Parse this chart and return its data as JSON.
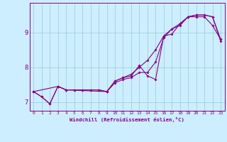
{
  "xlabel": "Windchill (Refroidissement éolien,°C)",
  "bg_color": "#cceeff",
  "line_color": "#880088",
  "grid_color": "#99cccc",
  "xlim": [
    -0.5,
    23.5
  ],
  "ylim": [
    6.75,
    9.85
  ],
  "yticks": [
    7,
    8,
    9
  ],
  "xticks": [
    0,
    1,
    2,
    3,
    4,
    5,
    6,
    7,
    8,
    9,
    10,
    11,
    12,
    13,
    14,
    15,
    16,
    17,
    18,
    19,
    20,
    21,
    22,
    23
  ],
  "line1_x": [
    0,
    1,
    2,
    3,
    4,
    5,
    6,
    7,
    8,
    9,
    10,
    11,
    12,
    13,
    14,
    15,
    16,
    17,
    18,
    19,
    20,
    21,
    22,
    23
  ],
  "line1_y": [
    7.3,
    7.15,
    6.95,
    7.45,
    7.35,
    7.35,
    7.35,
    7.35,
    7.35,
    7.3,
    7.55,
    7.65,
    7.7,
    7.85,
    7.85,
    8.15,
    8.85,
    9.1,
    9.2,
    9.45,
    9.45,
    9.45,
    9.2,
    8.8
  ],
  "line2_x": [
    0,
    3,
    4,
    9,
    10,
    11,
    12,
    13,
    14,
    15,
    16,
    17,
    18,
    19,
    20,
    21,
    22,
    23
  ],
  "line2_y": [
    7.3,
    7.45,
    7.35,
    7.3,
    7.6,
    7.7,
    7.75,
    8.05,
    7.75,
    7.65,
    8.9,
    8.95,
    9.25,
    9.45,
    9.5,
    9.5,
    9.45,
    8.75
  ],
  "line3_x": [
    0,
    1,
    2,
    3,
    4,
    5,
    6,
    7,
    8,
    9,
    10,
    11,
    12,
    13,
    14,
    15,
    16,
    17,
    18,
    19,
    20,
    21,
    22,
    23
  ],
  "line3_y": [
    7.3,
    7.15,
    6.95,
    7.45,
    7.35,
    7.35,
    7.35,
    7.35,
    7.35,
    7.3,
    7.6,
    7.7,
    7.8,
    8.0,
    8.2,
    8.5,
    8.9,
    9.1,
    9.25,
    9.45,
    9.5,
    9.5,
    9.45,
    8.8
  ]
}
